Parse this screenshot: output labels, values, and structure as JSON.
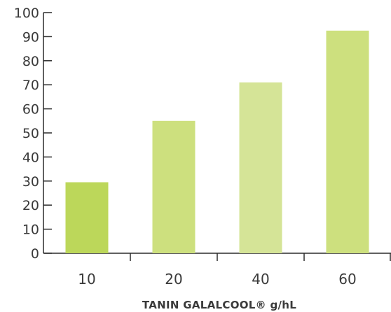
{
  "chart_data": {
    "type": "bar",
    "categories": [
      "10",
      "20",
      "40",
      "60"
    ],
    "values": [
      29.5,
      55,
      71,
      92.5
    ],
    "bar_colors": [
      "#bcd75a",
      "#cde07e",
      "#d5e497",
      "#cde07e"
    ],
    "xlabel": "TANIN GALALCOOL® g/hL",
    "ylabel": "",
    "ylim": [
      0,
      100
    ],
    "yticks": [
      "0",
      "10",
      "20",
      "30",
      "40",
      "50",
      "60",
      "70",
      "80",
      "90",
      "100"
    ],
    "grid": false,
    "legend": "none",
    "colors": {
      "axis": "#2b2b2b",
      "text": "#3a3a3a"
    }
  }
}
